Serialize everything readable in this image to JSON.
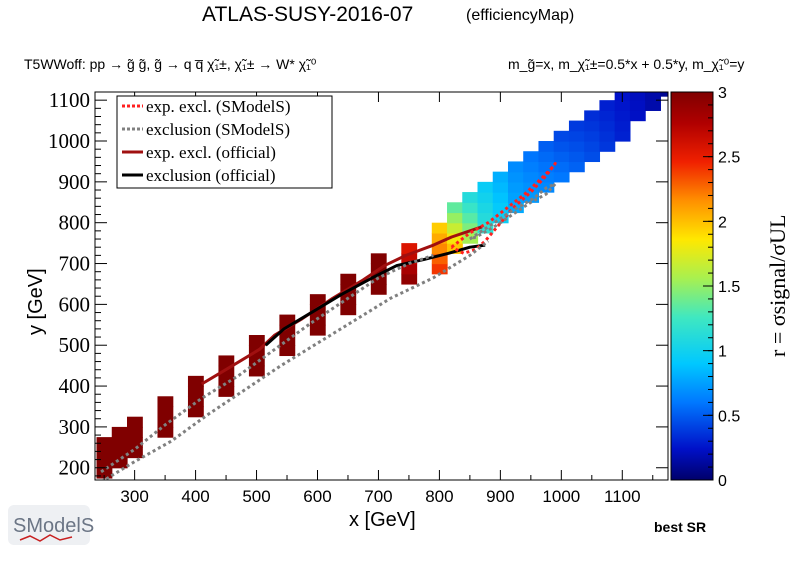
{
  "header": {
    "title": "ATLAS-SUSY-2016-07",
    "subtitle": "(efficiencyMap)",
    "process": "T5WWoff: pp  → g̃ g̃, g̃  → q q̅  χ̃₁±, χ̃₁± → W* χ̃₁⁰",
    "mass_relation": "m_g̃=x, m_χ̃₁±=0.5*x + 0.5*y, m_χ̃₁⁰=y"
  },
  "footer": {
    "best_sr": "best SR",
    "logo_text": "SModelS"
  },
  "chart_data": {
    "type": "heatmap",
    "title": "ATLAS-SUSY-2016-07 (efficiencyMap)",
    "xlabel": "x [GeV]",
    "ylabel": "y [GeV]",
    "zlabel": "r = σsignal/σUL",
    "xlim": [
      235,
      1175
    ],
    "ylim": [
      170,
      1120
    ],
    "zlim": [
      0,
      3
    ],
    "x_ticks": [
      300,
      400,
      500,
      600,
      700,
      800,
      900,
      1000,
      1100
    ],
    "y_ticks": [
      200,
      300,
      400,
      500,
      600,
      700,
      800,
      900,
      1000,
      1100
    ],
    "z_ticks": [
      0,
      0.5,
      1,
      1.5,
      2,
      2.5,
      3
    ],
    "grid": false,
    "legend_position": "top-left",
    "legend": [
      {
        "label": "exp. excl. (SModelS)",
        "color": "#ff2020",
        "style": "dotted"
      },
      {
        "label": "exclusion (SModelS)",
        "color": "#808080",
        "style": "dotted"
      },
      {
        "label": "exp. excl. (official)",
        "color": "#a01010",
        "style": "solid"
      },
      {
        "label": "exclusion (official)",
        "color": "#000000",
        "style": "solid"
      }
    ],
    "band": {
      "cell_size": 25,
      "bins": [
        [
          250,
          175,
          25
        ],
        [
          275,
          200,
          25
        ],
        [
          300,
          225,
          25
        ],
        [
          350,
          275,
          25
        ],
        [
          400,
          325,
          25
        ],
        [
          450,
          375,
          25
        ],
        [
          500,
          425,
          25
        ],
        [
          550,
          475,
          25
        ],
        [
          600,
          525,
          25
        ],
        [
          650,
          575,
          25
        ],
        [
          700,
          625,
          25
        ],
        [
          750,
          650,
          25
        ],
        [
          800,
          675,
          25
        ],
        [
          825,
          725,
          25
        ],
        [
          850,
          750,
          25
        ],
        [
          875,
          775,
          25
        ],
        [
          900,
          800,
          25
        ],
        [
          925,
          825,
          25
        ],
        [
          950,
          850,
          25
        ],
        [
          975,
          875,
          25
        ],
        [
          1000,
          900,
          25
        ],
        [
          1025,
          925,
          25
        ],
        [
          1050,
          950,
          25
        ],
        [
          1075,
          975,
          25
        ],
        [
          1100,
          1000,
          25
        ],
        [
          1125,
          1050,
          25
        ],
        [
          1150,
          1075,
          25
        ],
        [
          1175,
          1110,
          15
        ]
      ],
      "r_low_edge": [
        [
          250,
          3.0
        ],
        [
          700,
          3.0
        ],
        [
          760,
          2.9
        ],
        [
          800,
          2.4
        ],
        [
          830,
          1.9
        ],
        [
          870,
          1.2
        ],
        [
          920,
          0.8
        ],
        [
          1000,
          0.6
        ],
        [
          1100,
          0.3
        ],
        [
          1175,
          0.1
        ]
      ],
      "r_high_edge": [
        [
          250,
          3.0
        ],
        [
          700,
          3.0
        ],
        [
          760,
          2.5
        ],
        [
          800,
          2.0
        ],
        [
          830,
          1.3
        ],
        [
          870,
          1.0
        ],
        [
          920,
          0.7
        ],
        [
          1000,
          0.45
        ],
        [
          1100,
          0.25
        ],
        [
          1175,
          0.1
        ]
      ]
    },
    "series": [
      {
        "name": "exp. excl. (official)",
        "x": [
          410,
          455,
          505,
          530,
          575,
          625,
          675,
          710,
          745,
          790,
          820,
          860,
          870
        ],
        "y": [
          405,
          445,
          490,
          525,
          565,
          615,
          660,
          695,
          720,
          745,
          765,
          785,
          790
        ]
      },
      {
        "name": "exclusion (official)",
        "x": [
          515,
          545,
          590,
          640,
          690,
          730,
          775,
          815,
          850,
          875
        ],
        "y": [
          500,
          540,
          580,
          625,
          665,
          695,
          710,
          725,
          740,
          745
        ]
      },
      {
        "name": "exp. excl. (SModelS)",
        "x": [
          820,
          850,
          880,
          910,
          940,
          965,
          985,
          990,
          975,
          950,
          920,
          895,
          875,
          860,
          840,
          820
        ],
        "y": [
          740,
          775,
          800,
          835,
          870,
          905,
          935,
          945,
          915,
          875,
          835,
          790,
          755,
          735,
          725,
          740
        ]
      },
      {
        "name": "exclusion (SModelS) lower",
        "x": [
          245,
          300,
          360,
          420,
          480,
          540,
          600,
          660,
          720,
          790,
          850,
          880
        ],
        "y": [
          165,
          215,
          265,
          330,
          390,
          450,
          505,
          560,
          615,
          665,
          720,
          755
        ]
      },
      {
        "name": "exclusion (SModelS) upper",
        "x": [
          245,
          300,
          350,
          410,
          470,
          530,
          590,
          650,
          700,
          750,
          790
        ],
        "y": [
          190,
          245,
          305,
          370,
          425,
          490,
          555,
          615,
          665,
          700,
          720
        ]
      },
      {
        "name": "exclusion (SModelS) island",
        "x": [
          850,
          880,
          920,
          955,
          975,
          990,
          975,
          950,
          920,
          890,
          860,
          850
        ],
        "y": [
          760,
          790,
          830,
          860,
          885,
          895,
          870,
          850,
          820,
          790,
          765,
          760
        ]
      }
    ]
  }
}
